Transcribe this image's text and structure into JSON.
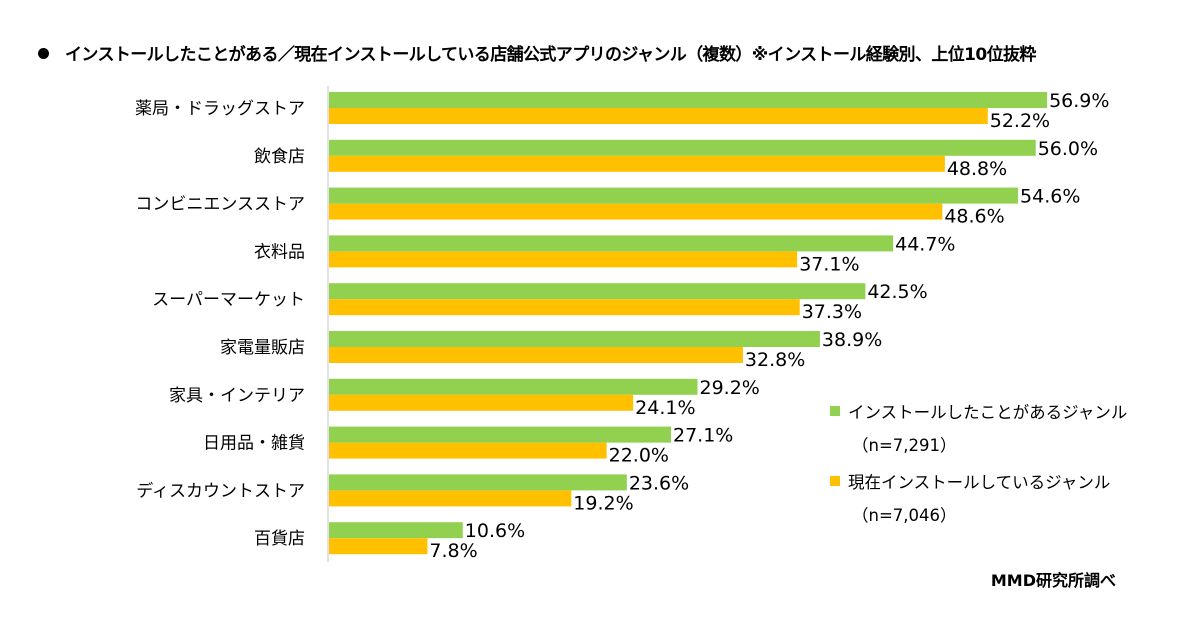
{
  "chart_data": {
    "type": "bar",
    "orientation": "horizontal",
    "title": "インストールしたことがある／現在インストールしている店舗公式アプリのジャンル（複数）※インストール経験別、上位10位抜粋",
    "xlabel": "",
    "ylabel": "",
    "xlim": [
      0,
      60
    ],
    "grid": false,
    "legend_position": "bottom-right",
    "categories": [
      "薬局・ドラッグストア",
      "飲食店",
      "コンビニエンスストア",
      "衣料品",
      "スーパーマーケット",
      "家電量販店",
      "家具・インテリア",
      "日用品・雑貨",
      "ディスカウントストア",
      "百貨店"
    ],
    "series": [
      {
        "name": "インストールしたことがあるジャンル",
        "n_label": "（n=7,291）",
        "color": "#92d050",
        "values": [
          56.9,
          56.0,
          54.6,
          44.7,
          42.5,
          38.9,
          29.2,
          27.1,
          23.6,
          10.6
        ],
        "labels": [
          "56.9%",
          "56.0%",
          "54.6%",
          "44.7%",
          "42.5%",
          "38.9%",
          "29.2%",
          "27.1%",
          "23.6%",
          "10.6%"
        ]
      },
      {
        "name": "現在インストールしているジャンル",
        "n_label": "（n=7,046）",
        "color": "#ffc000",
        "values": [
          52.2,
          48.8,
          48.6,
          37.1,
          37.3,
          32.8,
          24.1,
          22.0,
          19.2,
          7.8
        ],
        "labels": [
          "52.2%",
          "48.8%",
          "48.6%",
          "37.1%",
          "37.3%",
          "32.8%",
          "24.1%",
          "22.0%",
          "19.2%",
          "7.8%"
        ]
      }
    ],
    "source": "MMD研究所調べ"
  },
  "axis_color": "#d9d9d9"
}
